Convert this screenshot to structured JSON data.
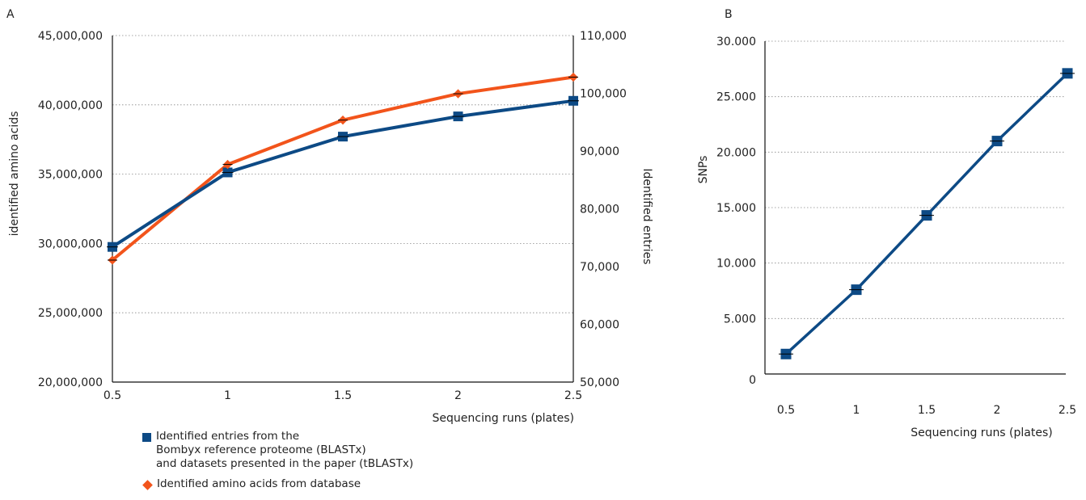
{
  "chart_data": [
    {
      "panel": "A",
      "type": "line",
      "x": [
        0.5,
        1,
        1.5,
        2,
        2.5
      ],
      "xlabel": "Sequencing runs (plates)",
      "xticks": [
        "0.5",
        "1",
        "1.5",
        "2",
        "2.5"
      ],
      "xlim": [
        0.5,
        2.5
      ],
      "ylabel_left": "identified amino acids",
      "ylabel_right": "Identified entries",
      "ylim_left": [
        20000000,
        45000000
      ],
      "ylim_right": [
        50000,
        110000
      ],
      "yticks_left": [
        "20,000,000",
        "25,000,000",
        "30,000,000",
        "35,000,000",
        "40,000,000",
        "45,000,000"
      ],
      "yticks_right": [
        "50,000",
        "60,000",
        "70,000",
        "80,000",
        "90,000",
        "100,000",
        "110,000"
      ],
      "grid": "horizontal dotted",
      "series": [
        {
          "name_lines": [
            "Identified entries from the",
            "Bombyx reference proteome (BLASTx)",
            "and datasets presented in the paper (tBLASTx)"
          ],
          "axis": "right",
          "marker": "square",
          "color": "#0d4a85",
          "values": [
            73400,
            86300,
            92500,
            96000,
            98700
          ]
        },
        {
          "name": "Identified amino acids from database",
          "axis": "left",
          "marker": "diamond",
          "color": "#f2541b",
          "values": [
            28800000,
            35700000,
            38900000,
            40800000,
            42000000
          ]
        }
      ]
    },
    {
      "panel": "B",
      "type": "line",
      "categories": [
        "0.5",
        "1",
        "1.5",
        "2",
        "2.5"
      ],
      "xlabel": "Sequencing runs (plates)",
      "ylabel": "SNPs",
      "ylim": [
        0,
        30000
      ],
      "yticks": [
        "0",
        "5.000",
        "10.000",
        "15.000",
        "20.000",
        "25.000",
        "30.000"
      ],
      "grid": "horizontal dotted",
      "series": [
        {
          "marker": "square",
          "color": "#0d4a85",
          "values": [
            1800,
            7600,
            14300,
            21000,
            27100
          ]
        }
      ]
    }
  ]
}
